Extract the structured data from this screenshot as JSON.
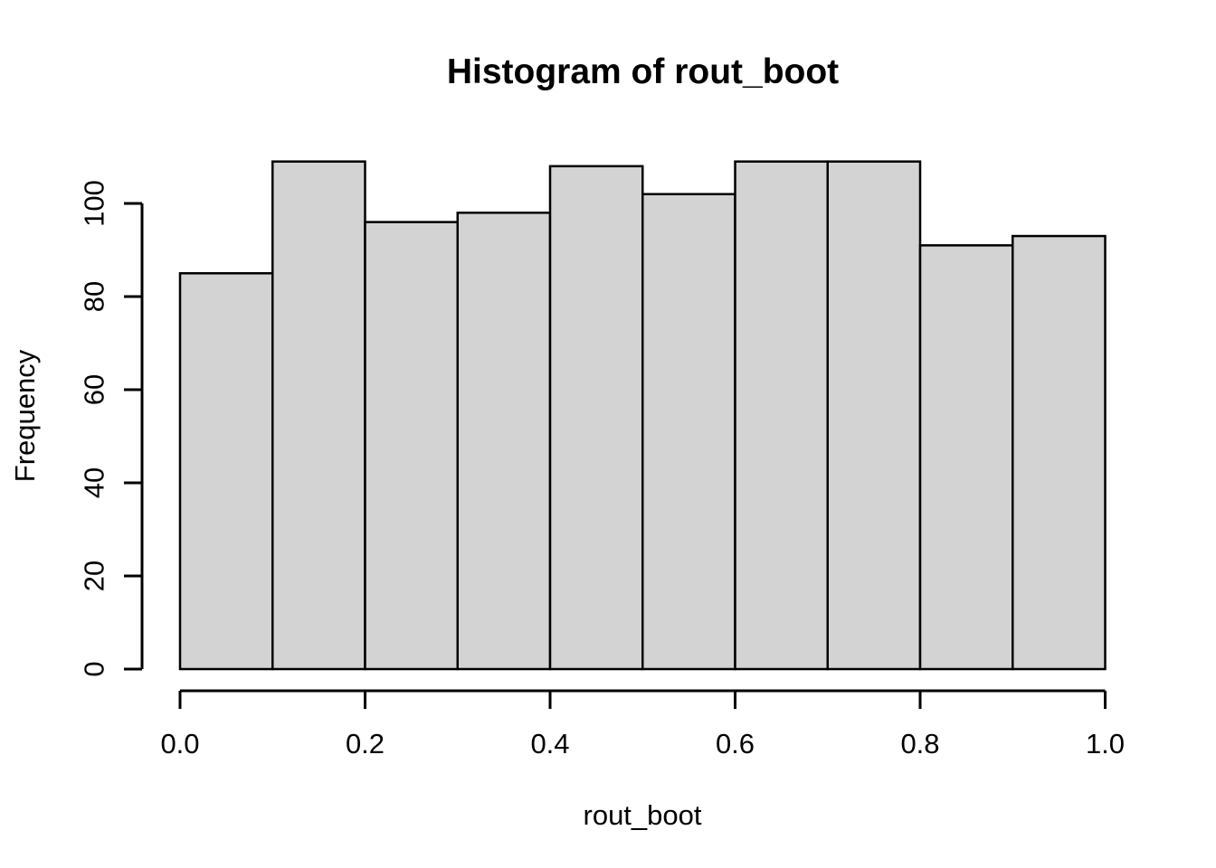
{
  "chart_data": {
    "type": "bar",
    "subtype": "histogram",
    "title": "Histogram of rout_boot",
    "xlabel": "rout_boot",
    "ylabel": "Frequency",
    "bin_edges": [
      0.0,
      0.1,
      0.2,
      0.3,
      0.4,
      0.5,
      0.6,
      0.7,
      0.8,
      0.9,
      1.0
    ],
    "counts": [
      85,
      109,
      96,
      98,
      108,
      102,
      109,
      109,
      91,
      93
    ],
    "x_tick_labels": [
      "0.0",
      "0.2",
      "0.4",
      "0.6",
      "0.8",
      "1.0"
    ],
    "x_tick_values": [
      0.0,
      0.2,
      0.4,
      0.6,
      0.8,
      1.0
    ],
    "y_tick_labels": [
      "0",
      "20",
      "40",
      "60",
      "80",
      "100"
    ],
    "y_tick_values": [
      0,
      20,
      40,
      60,
      80,
      100
    ],
    "xlim": [
      0.0,
      1.0
    ],
    "ylim": [
      0,
      110
    ],
    "grid": false,
    "legend_position": "none",
    "bar_fill": "#d3d3d3",
    "bar_stroke": "#000000",
    "axis_color": "#000000",
    "text_color": "#000000",
    "background": "#ffffff"
  }
}
